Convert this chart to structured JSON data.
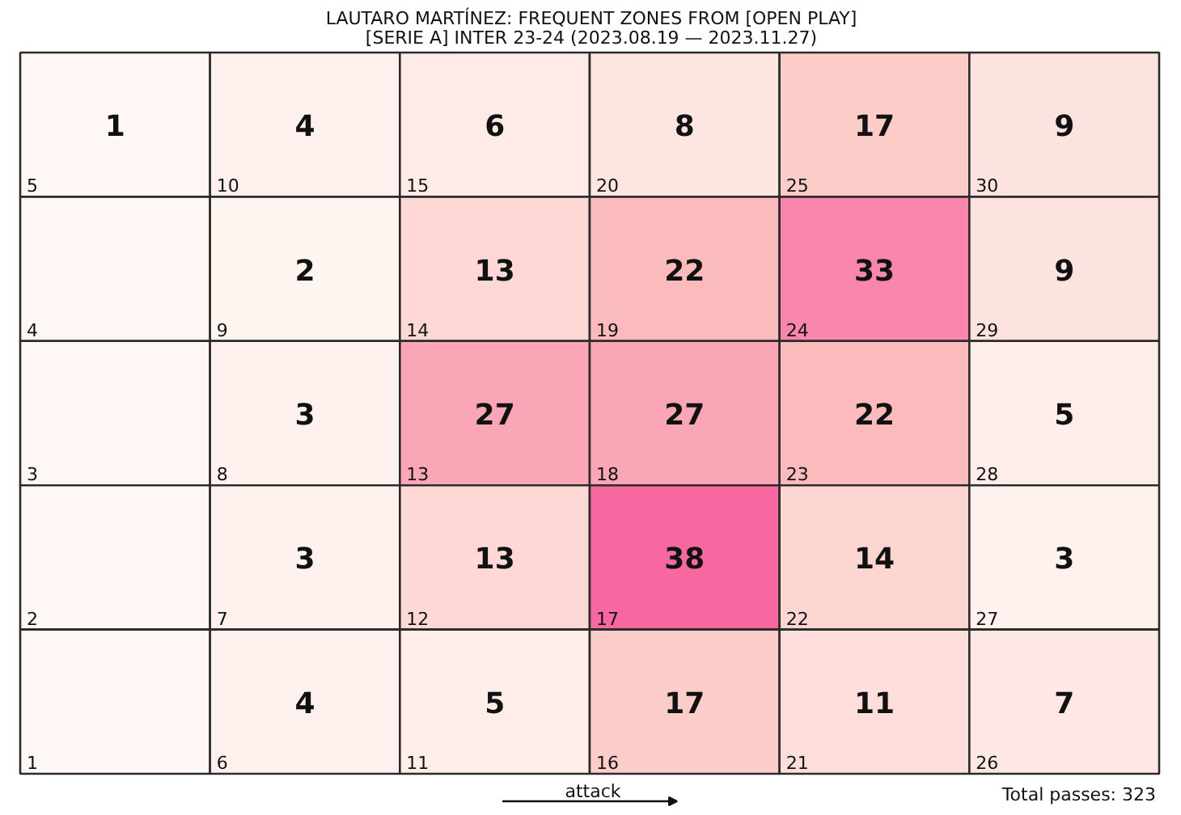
{
  "chart_data": {
    "type": "heatmap",
    "title": "LAUTARO MARTÍNEZ: FREQUENT ZONES FROM [OPEN PLAY]",
    "subtitle": "[SERIE A] INTER 23-24 (2023.08.19 — 2023.11.27)",
    "categories": [
      null,
      null,
      null,
      null,
      null,
      null
    ],
    "y_categories": [
      null,
      null,
      null,
      null,
      null
    ],
    "cells": [
      [
        1,
        4,
        6,
        8,
        17,
        9
      ],
      [
        null,
        2,
        13,
        22,
        33,
        9
      ],
      [
        null,
        3,
        27,
        27,
        22,
        5
      ],
      [
        null,
        3,
        13,
        38,
        14,
        3
      ],
      [
        null,
        4,
        5,
        17,
        11,
        7
      ]
    ],
    "colors": [
      "#fff7f3",
      "#fde0dd",
      "#fcc5c0",
      "#fa9fb5",
      "#f768a1"
    ],
    "data_labels": true,
    "annotations": [
      "5",
      "10",
      "15",
      "20",
      "25",
      "30",
      "4",
      "9",
      "14",
      "19",
      "24",
      "29",
      "3",
      "8",
      "13",
      "18",
      "23",
      "28",
      "2",
      "7",
      "12",
      "17",
      "22",
      "27",
      "1",
      "6",
      "11",
      "16",
      "21",
      "26",
      "attack",
      "Total passes: 323"
    ]
  }
}
